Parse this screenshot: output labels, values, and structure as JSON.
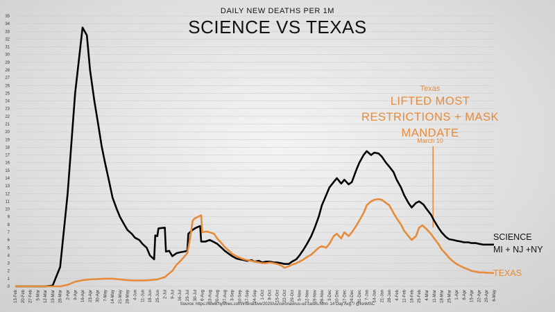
{
  "chart_data": {
    "type": "line",
    "subtitle": "DAILY NEW DEATHS PER 1M",
    "title": "SCIENCE VS TEXAS",
    "ylim": [
      0,
      35
    ],
    "y_ticks": [
      0,
      1,
      2,
      3,
      4,
      5,
      6,
      7,
      8,
      9,
      10,
      11,
      12,
      13,
      14,
      15,
      16,
      17,
      18,
      19,
      20,
      21,
      22,
      23,
      24,
      25,
      26,
      27,
      28,
      29,
      30,
      31,
      32,
      33,
      34,
      35
    ],
    "x_ticks": [
      "13-Feb",
      "20-Feb",
      "27-Feb",
      "5-Mar",
      "12-Mar",
      "19-Mar",
      "26-Mar",
      "2-Apr",
      "9-Apr",
      "16-Apr",
      "23-Apr",
      "30-Apr",
      "7-May",
      "14-May",
      "21-May",
      "28-May",
      "4-Jun",
      "11-Jun",
      "18-Jun",
      "25-Jun",
      "2-Jul",
      "9-Jul",
      "16-Jul",
      "23-Jul",
      "30-Jul",
      "6-Aug",
      "13-Aug",
      "20-Aug",
      "27-Aug",
      "3-Sep",
      "10-Sep",
      "17-Sep",
      "24-Sep",
      "1-Oct",
      "8-Oct",
      "15-Oct",
      "22-Oct",
      "29-Oct",
      "5-Nov",
      "12-Nov",
      "19-Nov",
      "26-Nov",
      "3-Dec",
      "10-Dec",
      "17-Dec",
      "24-Dec",
      "31-Dec",
      "7-Jan",
      "14-Jan",
      "21-Jan",
      "28-Jan",
      "4-Feb",
      "11-Feb",
      "18-Feb",
      "25-Feb",
      "4-Mar",
      "11-Mar",
      "18-Mar",
      "25-Mar",
      "1-Apr",
      "8-Apr",
      "15-Apr",
      "22-Apr",
      "29-Apr",
      "6-May"
    ],
    "grid": true,
    "series": [
      {
        "name": "SCIENCE",
        "name_line2": "MI + NJ +NY",
        "color": "#000000",
        "points": [
          [
            "13-Feb",
            0
          ],
          [
            "12-Mar",
            0
          ],
          [
            "19-Mar",
            0.1
          ],
          [
            "26-Mar",
            2.5
          ],
          [
            "2-Apr",
            12
          ],
          [
            "9-Apr",
            25
          ],
          [
            "16-Apr",
            33.5
          ],
          [
            "20-Apr",
            32.5
          ],
          [
            "23-Apr",
            28
          ],
          [
            "27-Apr",
            24
          ],
          [
            "30-Apr",
            21.5
          ],
          [
            "4-May",
            18
          ],
          [
            "7-May",
            16
          ],
          [
            "11-May",
            13.5
          ],
          [
            "14-May",
            11.5
          ],
          [
            "18-May",
            10
          ],
          [
            "21-May",
            9
          ],
          [
            "25-May",
            8
          ],
          [
            "28-May",
            7.3
          ],
          [
            "1-Jun",
            6.8
          ],
          [
            "4-Jun",
            6.3
          ],
          [
            "8-Jun",
            6
          ],
          [
            "11-Jun",
            5.5
          ],
          [
            "15-Jun",
            5
          ],
          [
            "18-Jun",
            4
          ],
          [
            "22-Jun",
            3.5
          ],
          [
            "23-Jun",
            6.6
          ],
          [
            "25-Jun",
            6.5
          ],
          [
            "26-Jun",
            7.5
          ],
          [
            "2-Jul",
            7.6
          ],
          [
            "3-Jul",
            4.5
          ],
          [
            "6-Jul",
            4.6
          ],
          [
            "9-Jul",
            3.9
          ],
          [
            "13-Jul",
            4.3
          ],
          [
            "16-Jul",
            4.4
          ],
          [
            "20-Jul",
            4.5
          ],
          [
            "23-Jul",
            4.6
          ],
          [
            "24-Jul",
            6.8
          ],
          [
            "27-Jul",
            7.2
          ],
          [
            "30-Jul",
            7.5
          ],
          [
            "2-Aug",
            7.7
          ],
          [
            "4-Aug",
            7.8
          ],
          [
            "5-Aug",
            5.8
          ],
          [
            "9-Aug",
            5.8
          ],
          [
            "13-Aug",
            6
          ],
          [
            "16-Aug",
            5.8
          ],
          [
            "20-Aug",
            5.5
          ],
          [
            "24-Aug",
            5
          ],
          [
            "27-Aug",
            4.6
          ],
          [
            "31-Aug",
            4.2
          ],
          [
            "3-Sep",
            3.9
          ],
          [
            "7-Sep",
            3.6
          ],
          [
            "10-Sep",
            3.5
          ],
          [
            "14-Sep",
            3.4
          ],
          [
            "17-Sep",
            3.3
          ],
          [
            "21-Sep",
            3.4
          ],
          [
            "24-Sep",
            3.2
          ],
          [
            "28-Sep",
            3.3
          ],
          [
            "1-Oct",
            3.1
          ],
          [
            "5-Oct",
            3.2
          ],
          [
            "8-Oct",
            3.2
          ],
          [
            "12-Oct",
            3.1
          ],
          [
            "15-Oct",
            3.1
          ],
          [
            "19-Oct",
            3
          ],
          [
            "22-Oct",
            2.9
          ],
          [
            "26-Oct",
            2.9
          ],
          [
            "29-Oct",
            3.2
          ],
          [
            "2-Nov",
            3.5
          ],
          [
            "5-Nov",
            4
          ],
          [
            "9-Nov",
            4.8
          ],
          [
            "12-Nov",
            5.5
          ],
          [
            "16-Nov",
            6.5
          ],
          [
            "19-Nov",
            7.5
          ],
          [
            "23-Nov",
            9
          ],
          [
            "26-Nov",
            10.5
          ],
          [
            "30-Nov",
            11.8
          ],
          [
            "3-Dec",
            12.8
          ],
          [
            "7-Dec",
            13.5
          ],
          [
            "10-Dec",
            14
          ],
          [
            "14-Dec",
            13.3
          ],
          [
            "17-Dec",
            13.8
          ],
          [
            "21-Dec",
            13.2
          ],
          [
            "24-Dec",
            13.5
          ],
          [
            "28-Dec",
            15
          ],
          [
            "31-Dec",
            16
          ],
          [
            "4-Jan",
            17
          ],
          [
            "7-Jan",
            17.5
          ],
          [
            "11-Jan",
            17
          ],
          [
            "14-Jan",
            17.3
          ],
          [
            "18-Jan",
            17.2
          ],
          [
            "21-Jan",
            16.8
          ],
          [
            "25-Jan",
            16
          ],
          [
            "28-Jan",
            15.5
          ],
          [
            "1-Feb",
            14.8
          ],
          [
            "4-Feb",
            13.8
          ],
          [
            "8-Feb",
            12.8
          ],
          [
            "11-Feb",
            11.8
          ],
          [
            "15-Feb",
            10.8
          ],
          [
            "18-Feb",
            10.2
          ],
          [
            "22-Feb",
            10.8
          ],
          [
            "25-Feb",
            11
          ],
          [
            "1-Mar",
            10.6
          ],
          [
            "4-Mar",
            10
          ],
          [
            "8-Mar",
            9.3
          ],
          [
            "11-Mar",
            8.5
          ],
          [
            "15-Mar",
            7.6
          ],
          [
            "18-Mar",
            7
          ],
          [
            "22-Mar",
            6.4
          ],
          [
            "25-Mar",
            6.1
          ],
          [
            "29-Mar",
            6
          ],
          [
            "1-Apr",
            5.9
          ],
          [
            "5-Apr",
            5.8
          ],
          [
            "8-Apr",
            5.7
          ],
          [
            "12-Apr",
            5.7
          ],
          [
            "15-Apr",
            5.6
          ],
          [
            "19-Apr",
            5.6
          ],
          [
            "22-Apr",
            5.5
          ],
          [
            "26-Apr",
            5.4
          ],
          [
            "29-Apr",
            5.4
          ],
          [
            "3-May",
            5.4
          ],
          [
            "6-May",
            5.4
          ]
        ]
      },
      {
        "name": "TEXAS",
        "color": "#E58B3A",
        "points": [
          [
            "13-Feb",
            0
          ],
          [
            "26-Mar",
            0
          ],
          [
            "2-Apr",
            0.2
          ],
          [
            "9-Apr",
            0.6
          ],
          [
            "16-Apr",
            0.8
          ],
          [
            "23-Apr",
            0.9
          ],
          [
            "30-Apr",
            0.95
          ],
          [
            "7-May",
            1
          ],
          [
            "14-May",
            1
          ],
          [
            "21-May",
            0.9
          ],
          [
            "28-May",
            0.8
          ],
          [
            "4-Jun",
            0.75
          ],
          [
            "11-Jun",
            0.75
          ],
          [
            "18-Jun",
            0.8
          ],
          [
            "25-Jun",
            0.9
          ],
          [
            "2-Jul",
            1.2
          ],
          [
            "9-Jul",
            2
          ],
          [
            "13-Jul",
            2.8
          ],
          [
            "16-Jul",
            3.2
          ],
          [
            "20-Jul",
            3.8
          ],
          [
            "23-Jul",
            4.3
          ],
          [
            "26-Jul",
            6.5
          ],
          [
            "28-Jul",
            8.5
          ],
          [
            "30-Jul",
            8.8
          ],
          [
            "2-Aug",
            9
          ],
          [
            "5-Aug",
            9.2
          ],
          [
            "6-Aug",
            7
          ],
          [
            "10-Aug",
            7.1
          ],
          [
            "13-Aug",
            7
          ],
          [
            "17-Aug",
            6.8
          ],
          [
            "20-Aug",
            6.2
          ],
          [
            "24-Aug",
            5.6
          ],
          [
            "27-Aug",
            5.1
          ],
          [
            "31-Aug",
            4.6
          ],
          [
            "3-Sep",
            4.2
          ],
          [
            "7-Sep",
            3.9
          ],
          [
            "10-Sep",
            3.7
          ],
          [
            "14-Sep",
            3.5
          ],
          [
            "17-Sep",
            3.4
          ],
          [
            "21-Sep",
            3.3
          ],
          [
            "24-Sep",
            3.2
          ],
          [
            "28-Sep",
            3.1
          ],
          [
            "1-Oct",
            3
          ],
          [
            "5-Oct",
            3
          ],
          [
            "8-Oct",
            3.1
          ],
          [
            "12-Oct",
            3
          ],
          [
            "15-Oct",
            2.9
          ],
          [
            "19-Oct",
            2.7
          ],
          [
            "22-Oct",
            2.4
          ],
          [
            "26-Oct",
            2.6
          ],
          [
            "29-Oct",
            2.8
          ],
          [
            "2-Nov",
            3
          ],
          [
            "5-Nov",
            3.2
          ],
          [
            "9-Nov",
            3.5
          ],
          [
            "12-Nov",
            3.8
          ],
          [
            "16-Nov",
            4.1
          ],
          [
            "19-Nov",
            4.5
          ],
          [
            "23-Nov",
            5
          ],
          [
            "26-Nov",
            5.2
          ],
          [
            "30-Nov",
            5
          ],
          [
            "3-Dec",
            5.5
          ],
          [
            "7-Dec",
            6.5
          ],
          [
            "10-Dec",
            6.8
          ],
          [
            "14-Dec",
            6.2
          ],
          [
            "17-Dec",
            7
          ],
          [
            "21-Dec",
            6.5
          ],
          [
            "24-Dec",
            7
          ],
          [
            "28-Dec",
            7.8
          ],
          [
            "31-Dec",
            8.5
          ],
          [
            "4-Jan",
            9.5
          ],
          [
            "7-Jan",
            10.5
          ],
          [
            "11-Jan",
            11
          ],
          [
            "14-Jan",
            11.2
          ],
          [
            "18-Jan",
            11.3
          ],
          [
            "21-Jan",
            11.2
          ],
          [
            "25-Jan",
            10.8
          ],
          [
            "28-Jan",
            10.5
          ],
          [
            "1-Feb",
            9.5
          ],
          [
            "4-Feb",
            8.8
          ],
          [
            "8-Feb",
            8
          ],
          [
            "11-Feb",
            7.2
          ],
          [
            "15-Feb",
            6.5
          ],
          [
            "18-Feb",
            6
          ],
          [
            "22-Feb",
            6.5
          ],
          [
            "25-Feb",
            7.6
          ],
          [
            "28-Feb",
            7.9
          ],
          [
            "4-Mar",
            7.4
          ],
          [
            "8-Mar",
            6.8
          ],
          [
            "11-Mar",
            6.2
          ],
          [
            "15-Mar",
            5.5
          ],
          [
            "18-Mar",
            4.8
          ],
          [
            "22-Mar",
            4.2
          ],
          [
            "25-Mar",
            3.7
          ],
          [
            "29-Mar",
            3.2
          ],
          [
            "1-Apr",
            2.9
          ],
          [
            "5-Apr",
            2.6
          ],
          [
            "8-Apr",
            2.4
          ],
          [
            "12-Apr",
            2.2
          ],
          [
            "15-Apr",
            2
          ],
          [
            "19-Apr",
            1.9
          ],
          [
            "22-Apr",
            1.8
          ],
          [
            "26-Apr",
            1.8
          ],
          [
            "29-Apr",
            1.75
          ],
          [
            "3-May",
            1.75
          ],
          [
            "6-May",
            1.7
          ]
        ]
      }
    ],
    "annotation": {
      "label_small": "Texas",
      "label_big_lines": [
        "LIFTED MOST",
        "RESTRICTIONS + MASK",
        "MANDATE"
      ],
      "date_label": "March 10",
      "x": "10-Mar",
      "color": "#E58B3A"
    },
    "source": "Source: https://www.nytimes.com/interactive/2020/us/coronavirus-us-cases.html- 14 Day Avg. / @ionMSC"
  }
}
